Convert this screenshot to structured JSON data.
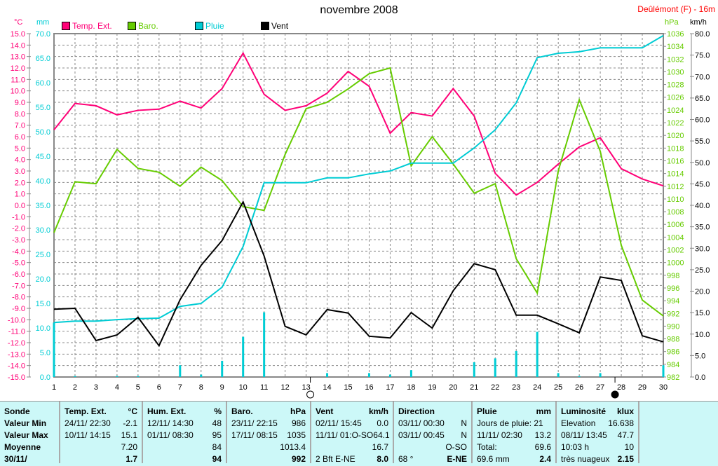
{
  "header": {
    "title": "novembre 2008",
    "station": "Deûlémont (F) - 16m"
  },
  "units": {
    "temp": "°C",
    "rain": "mm",
    "baro": "hPa",
    "wind": "km/h"
  },
  "colors": {
    "temp": "#ff0077",
    "baro": "#66cc00",
    "rain": "#00ccd4",
    "wind": "#000000"
  },
  "moon_phases": [
    {
      "day": 13.2,
      "icon": "new-moon-icon"
    },
    {
      "day": 27.7,
      "icon": "moon-quarter-icon"
    }
  ],
  "chart_data": {
    "type": "line",
    "title": "novembre 2008",
    "x": [
      1,
      2,
      3,
      4,
      5,
      6,
      7,
      8,
      9,
      10,
      11,
      12,
      13,
      14,
      15,
      16,
      17,
      18,
      19,
      20,
      21,
      22,
      23,
      24,
      25,
      26,
      27,
      28,
      29,
      30
    ],
    "grid": true,
    "legend": "top-left",
    "axes": {
      "temp": [
        -15,
        15
      ],
      "rain": [
        0,
        70
      ],
      "baro": [
        982,
        1036
      ],
      "wind": [
        0,
        80
      ]
    },
    "series": [
      {
        "name": "Temp. Ext.",
        "axis": "temp",
        "values": [
          6.6,
          8.9,
          8.7,
          7.9,
          8.3,
          8.4,
          9.1,
          8.5,
          10.2,
          13.3,
          9.7,
          8.3,
          8.7,
          9.8,
          11.7,
          10.4,
          6.3,
          8.1,
          7.8,
          10.2,
          7.8,
          2.8,
          0.9,
          2.0,
          3.6,
          5.1,
          5.9,
          3.2,
          2.3,
          1.7
        ]
      },
      {
        "name": "Baro.",
        "axis": "baro",
        "values": [
          1004.7,
          1012.7,
          1012.4,
          1017.8,
          1014.8,
          1014.2,
          1012.0,
          1015.0,
          1012.9,
          1008.8,
          1008.2,
          1017.0,
          1024.2,
          1025.2,
          1027.3,
          1029.7,
          1030.6,
          1015.2,
          1019.8,
          1015.5,
          1010.9,
          1012.4,
          1000.6,
          995.2,
          1014.4,
          1025.6,
          1017.5,
          1002.7,
          994.1,
          991.6
        ]
      },
      {
        "name": "Pluie",
        "axis": "rain",
        "values": [
          11.1,
          11.4,
          11.4,
          11.7,
          11.9,
          12.0,
          14.4,
          15.0,
          18.3,
          26.6,
          39.6,
          39.6,
          39.6,
          40.6,
          40.6,
          41.4,
          42.0,
          43.6,
          43.6,
          43.6,
          46.7,
          50.4,
          55.9,
          65.1,
          66.0,
          66.3,
          67.1,
          67.1,
          67.1,
          69.6
        ],
        "daily": [
          11.1,
          0.2,
          0,
          0.2,
          0.2,
          0,
          2.4,
          0.5,
          3.3,
          8.2,
          13.2,
          0,
          0,
          0.8,
          0,
          0.8,
          0.5,
          1.4,
          0,
          0,
          3.0,
          3.8,
          5.3,
          9.2,
          0.8,
          0.2,
          0.8,
          0,
          0,
          2.4
        ]
      },
      {
        "name": "Vent",
        "axis": "wind",
        "values": [
          15.8,
          16.0,
          8.5,
          9.8,
          13.9,
          7.3,
          18.0,
          26.0,
          31.8,
          40.8,
          28.2,
          11.8,
          9.8,
          15.7,
          14.9,
          9.5,
          9.1,
          15.0,
          11.4,
          20.1,
          26.4,
          25.0,
          14.4,
          14.4,
          12.4,
          10.3,
          23.3,
          22.5,
          9.6,
          8.2
        ]
      }
    ]
  },
  "table": [
    {
      "rows": [
        [
          "Sonde",
          ""
        ],
        [
          "Valeur Min",
          ""
        ],
        [
          "Valeur Max",
          ""
        ],
        [
          "Moyenne",
          ""
        ],
        [
          "30/11/",
          ""
        ]
      ],
      "bold": "all"
    },
    {
      "rows": [
        [
          "Temp. Ext.",
          "°C"
        ],
        [
          "24/11/  22:30",
          "-2.1"
        ],
        [
          "10/11/  14:15",
          "15.1"
        ],
        [
          "",
          "7.20"
        ],
        [
          "",
          "1.7"
        ]
      ]
    },
    {
      "rows": [
        [
          "Hum. Ext.",
          "%"
        ],
        [
          "12/11/  14:30",
          "48"
        ],
        [
          "01/11/  08:30",
          "95"
        ],
        [
          "",
          "84"
        ],
        [
          "",
          "94"
        ]
      ]
    },
    {
      "rows": [
        [
          "Baro.",
          "hPa"
        ],
        [
          "23/11/  22:15",
          "986"
        ],
        [
          "17/11/  08:15",
          "1035"
        ],
        [
          "",
          "1013.4"
        ],
        [
          "",
          "992"
        ]
      ]
    },
    {
      "rows": [
        [
          "Vent",
          "km/h"
        ],
        [
          "02/11/  15:45",
          "0.0"
        ],
        [
          "11/11/  01:O-SO",
          "64.1"
        ],
        [
          "",
          "16.7"
        ],
        [
          "2 Bft E-NE",
          "8.0"
        ]
      ]
    },
    {
      "rows": [
        [
          "Direction",
          ""
        ],
        [
          "03/11/  00:30",
          "N"
        ],
        [
          "03/11/  00:45",
          "N"
        ],
        [
          "",
          "O-SO"
        ],
        [
          "68 °",
          "E-NE"
        ]
      ]
    },
    {
      "rows": [
        [
          "Pluie",
          "mm"
        ],
        [
          "Jours de pluie: 21",
          ""
        ],
        [
          "11/11/  02:30",
          "13.2"
        ],
        [
          "Total:",
          "69.6"
        ],
        [
          "69.6 mm",
          "2.4"
        ]
      ]
    },
    {
      "rows": [
        [
          "Luminosité",
          "klux"
        ],
        [
          "Elevation",
          "16.638"
        ],
        [
          "08/11/  13:45",
          "47.7"
        ],
        [
          "10:03 h",
          "10"
        ],
        [
          "très nuageux",
          "2.15"
        ]
      ]
    }
  ]
}
